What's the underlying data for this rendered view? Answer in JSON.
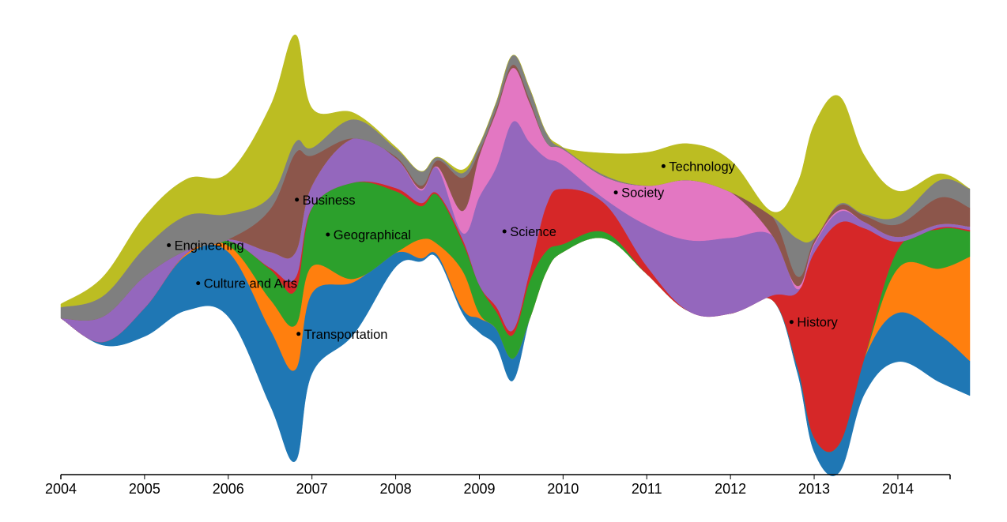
{
  "chart_data": {
    "type": "area",
    "title": "",
    "xlabel": "",
    "ylabel": "",
    "xlim": [
      2004.0,
      2014.86
    ],
    "x": [
      2004.0,
      2004.5,
      2005.0,
      2005.5,
      2006.0,
      2006.5,
      2006.8,
      2007.0,
      2007.5,
      2008.0,
      2008.3,
      2008.5,
      2008.8,
      2009.0,
      2009.2,
      2009.4,
      2009.6,
      2009.8,
      2010.0,
      2010.5,
      2011.0,
      2011.5,
      2012.0,
      2012.5,
      2012.8,
      2013.0,
      2013.3,
      2013.6,
      2014.0,
      2014.5,
      2014.86
    ],
    "series": [
      {
        "name": "Culture and Arts",
        "color": "#1f77b4",
        "values": [
          0,
          4,
          36,
          70,
          82,
          96,
          116,
          102,
          66,
          18,
          4,
          4,
          6,
          18,
          22,
          28,
          0,
          0,
          0,
          0,
          0,
          0,
          0,
          0,
          8,
          18,
          36,
          46,
          62,
          60,
          44
        ]
      },
      {
        "name": "Transportation",
        "color": "#ff7f0e",
        "values": [
          0,
          0,
          0,
          2,
          8,
          38,
          56,
          34,
          4,
          0,
          24,
          14,
          48,
          6,
          0,
          0,
          0,
          0,
          0,
          0,
          0,
          0,
          0,
          0,
          0,
          0,
          0,
          0,
          56,
          84,
          132
        ]
      },
      {
        "name": "Geographical",
        "color": "#2ca02c",
        "values": [
          0,
          0,
          0,
          0,
          6,
          38,
          44,
          74,
          122,
          78,
          42,
          62,
          36,
          36,
          22,
          30,
          48,
          26,
          10,
          8,
          0,
          0,
          0,
          0,
          0,
          0,
          0,
          0,
          24,
          50,
          32
        ]
      },
      {
        "name": "History",
        "color": "#d62728",
        "values": [
          0,
          0,
          0,
          0,
          0,
          2,
          16,
          0,
          0,
          4,
          4,
          2,
          4,
          0,
          6,
          6,
          12,
          58,
          70,
          36,
          10,
          0,
          0,
          6,
          94,
          234,
          280,
          164,
          10,
          2,
          2
        ]
      },
      {
        "name": "Science",
        "color": "#9467bd",
        "values": [
          0,
          32,
          40,
          4,
          2,
          20,
          32,
          28,
          56,
          38,
          16,
          32,
          8,
          112,
          176,
          264,
          164,
          60,
          30,
          6,
          52,
          90,
          96,
          76,
          4,
          10,
          14,
          8,
          6,
          4,
          4
        ]
      },
      {
        "name": "Society",
        "color": "#e377c2",
        "values": [
          0,
          0,
          0,
          0,
          0,
          0,
          0,
          0,
          0,
          0,
          2,
          2,
          28,
          52,
          70,
          68,
          50,
          20,
          20,
          28,
          50,
          76,
          58,
          0,
          4,
          2,
          2,
          0,
          0,
          0,
          0
        ]
      },
      {
        "name": "Business",
        "color": "#8c564b",
        "values": [
          0,
          0,
          0,
          0,
          0,
          54,
          126,
          38,
          0,
          2,
          4,
          8,
          42,
          6,
          4,
          4,
          4,
          0,
          0,
          0,
          0,
          0,
          0,
          24,
          12,
          4,
          6,
          8,
          16,
          34,
          24
        ]
      },
      {
        "name": "Engineering",
        "color": "#7f7f7f",
        "values": [
          14,
          26,
          36,
          44,
          32,
          16,
          14,
          10,
          24,
          10,
          18,
          4,
          6,
          8,
          8,
          12,
          14,
          12,
          2,
          2,
          0,
          0,
          0,
          0,
          48,
          2,
          2,
          2,
          10,
          22,
          24
        ]
      },
      {
        "name": "Technology",
        "color": "#bcbd22",
        "values": [
          4,
          24,
          40,
          46,
          52,
          114,
          136,
          50,
          8,
          2,
          0,
          0,
          4,
          0,
          0,
          0,
          0,
          0,
          0,
          28,
          42,
          46,
          40,
          6,
          70,
          144,
          136,
          74,
          32,
          8,
          0
        ]
      }
    ],
    "labels": [
      {
        "series": "Culture and Arts",
        "text": "Culture and Arts",
        "x": 2005.64
      },
      {
        "series": "Transportation",
        "text": "Transportation",
        "x": 2006.84
      },
      {
        "series": "Geographical",
        "text": "Geographical",
        "x": 2007.19
      },
      {
        "series": "History",
        "text": "History",
        "x": 2012.73
      },
      {
        "series": "Science",
        "text": "Science",
        "x": 2009.3
      },
      {
        "series": "Society",
        "text": "Society",
        "x": 2010.63
      },
      {
        "series": "Business",
        "text": "Business",
        "x": 2006.82
      },
      {
        "series": "Engineering",
        "text": "Engineering",
        "x": 2005.29
      },
      {
        "series": "Technology",
        "text": "Technology",
        "x": 2011.2
      }
    ],
    "x_ticks": [
      "2004",
      "2005",
      "2006",
      "2007",
      "2008",
      "2009",
      "2010",
      "2011",
      "2012",
      "2013",
      "2014"
    ],
    "tick_values": [
      2004,
      2005,
      2006,
      2007,
      2008,
      2009,
      2010,
      2011,
      2012,
      2013,
      2014
    ],
    "legend": "inline labels",
    "grid": false
  }
}
